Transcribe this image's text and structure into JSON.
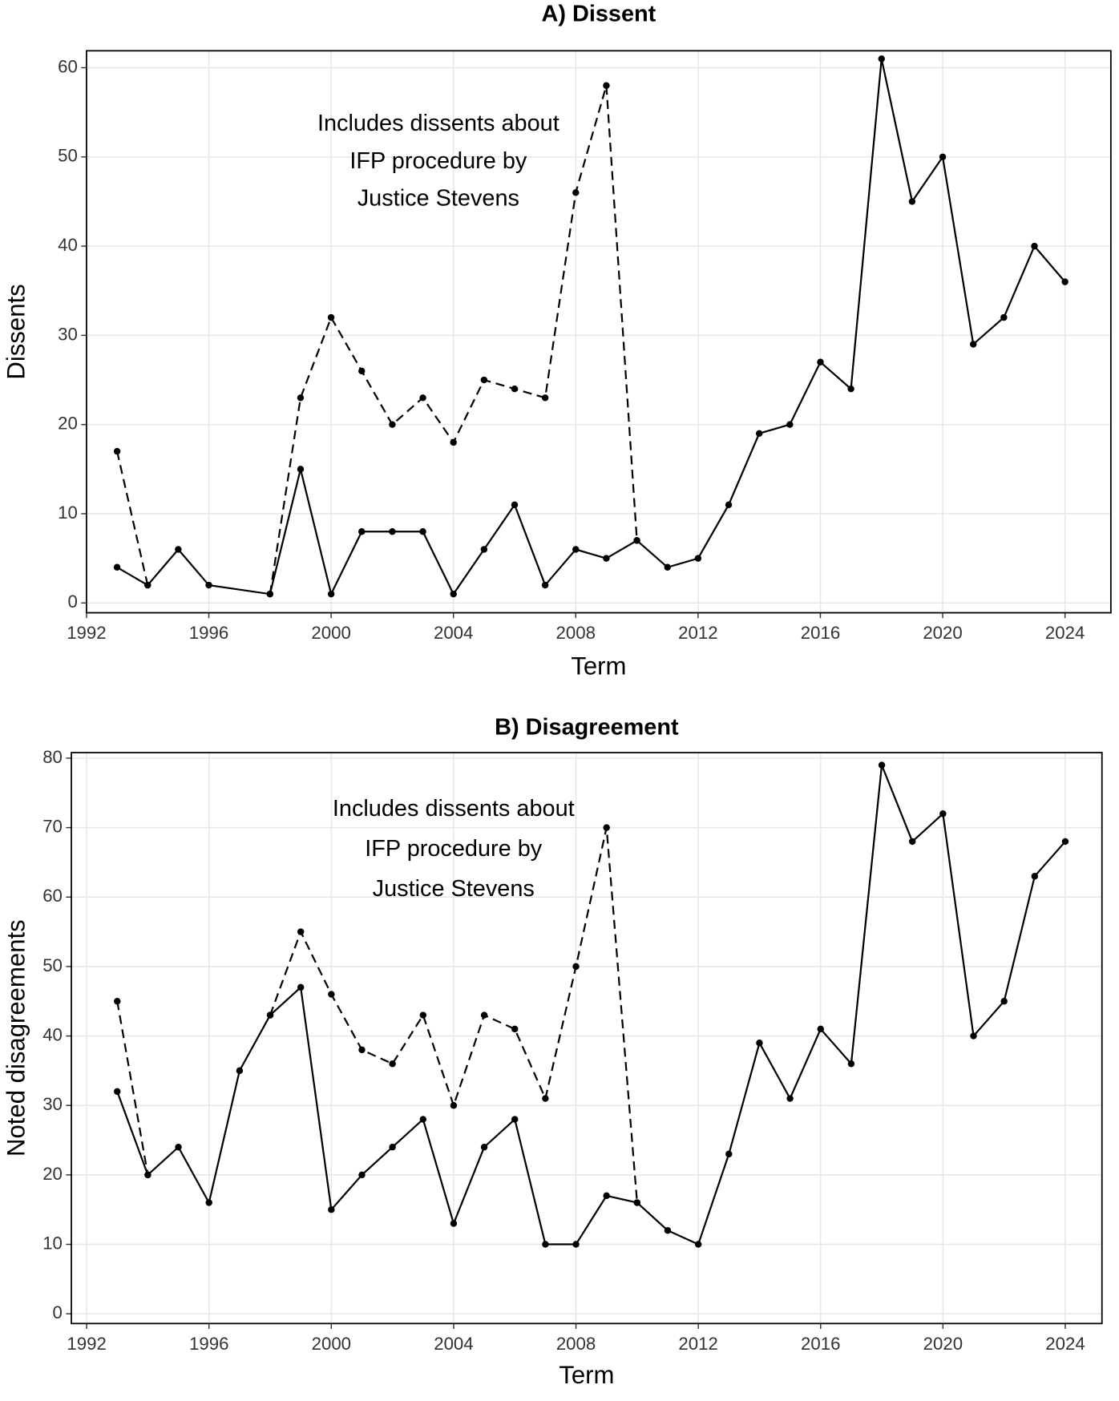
{
  "chart_data": [
    {
      "type": "line",
      "title": "A) Dissent",
      "x_label": "Term",
      "y_label": "Dissents",
      "xlim": [
        1992.0,
        2025.5
      ],
      "xticks": [
        1992,
        1996,
        2000,
        2004,
        2008,
        2012,
        2016,
        2020,
        2024
      ],
      "ylim": [
        -1.1,
        61.9
      ],
      "yticks": [
        0,
        10,
        20,
        30,
        40,
        50,
        60
      ],
      "grid": true,
      "annotation": [
        "Includes dissents about",
        "IFP procedure by",
        "Justice Stevens"
      ],
      "series": [
        {
          "color": "#000000",
          "line_style": "solid",
          "x": [
            1993,
            1994,
            1995,
            1996,
            1998,
            1999,
            2000,
            2001,
            2002,
            2003,
            2004,
            2005,
            2006,
            2007,
            2008,
            2009,
            2010,
            2011,
            2012,
            2013,
            2014,
            2015,
            2016,
            2017,
            2018,
            2019,
            2020,
            2021,
            2022,
            2023,
            2024
          ],
          "values": [
            4,
            2,
            6,
            2,
            1,
            15,
            1,
            8,
            8,
            8,
            1,
            6,
            11,
            2,
            6,
            5,
            7,
            4,
            5,
            11,
            19,
            20,
            27,
            24,
            61,
            45,
            50,
            29,
            32,
            40,
            36
          ]
        },
        {
          "color": "#000000",
          "line_style": "dashed",
          "x": [
            1993,
            1994,
            1995,
            1996,
            1997,
            1998,
            1999,
            2000,
            2001,
            2002,
            2003,
            2004,
            2005,
            2006,
            2007,
            2008,
            2009,
            2010
          ],
          "values": [
            17,
            2,
            null,
            null,
            null,
            1,
            23,
            32,
            26,
            20,
            23,
            18,
            25,
            24,
            23,
            46,
            58,
            7
          ]
        }
      ]
    },
    {
      "type": "line",
      "title": "B) Disagreement",
      "x_label": "Term",
      "y_label": "Noted disagreements",
      "xlim": [
        1991.5,
        2025.2
      ],
      "xticks": [
        1992,
        1996,
        2000,
        2004,
        2008,
        2012,
        2016,
        2020,
        2024
      ],
      "ylim": [
        -1.4,
        80.8
      ],
      "yticks": [
        0,
        10,
        20,
        30,
        40,
        50,
        60,
        70,
        80
      ],
      "grid": true,
      "annotation": [
        "Includes dissents about",
        "IFP procedure by",
        "Justice Stevens"
      ],
      "series": [
        {
          "color": "#000000",
          "line_style": "solid",
          "x": [
            1993,
            1994,
            1995,
            1996,
            1997,
            1998,
            1999,
            2000,
            2001,
            2002,
            2003,
            2004,
            2005,
            2006,
            2007,
            2008,
            2009,
            2010,
            2011,
            2012,
            2013,
            2014,
            2015,
            2016,
            2017,
            2018,
            2019,
            2020,
            2021,
            2022,
            2023,
            2024
          ],
          "values": [
            32,
            20,
            24,
            16,
            35,
            43,
            47,
            15,
            20,
            24,
            28,
            13,
            24,
            28,
            10,
            10,
            17,
            16,
            12,
            10,
            23,
            39,
            31,
            41,
            36,
            79,
            68,
            72,
            40,
            45,
            63,
            68
          ]
        },
        {
          "color": "#000000",
          "line_style": "dashed",
          "x": [
            1993,
            1994,
            1995,
            1996,
            1997,
            1998,
            1999,
            2000,
            2001,
            2002,
            2003,
            2004,
            2005,
            2006,
            2007,
            2008,
            2009,
            2010
          ],
          "values": [
            45,
            20,
            null,
            null,
            null,
            43,
            55,
            46,
            38,
            36,
            43,
            30,
            43,
            41,
            31,
            50,
            70,
            16
          ]
        }
      ]
    }
  ]
}
